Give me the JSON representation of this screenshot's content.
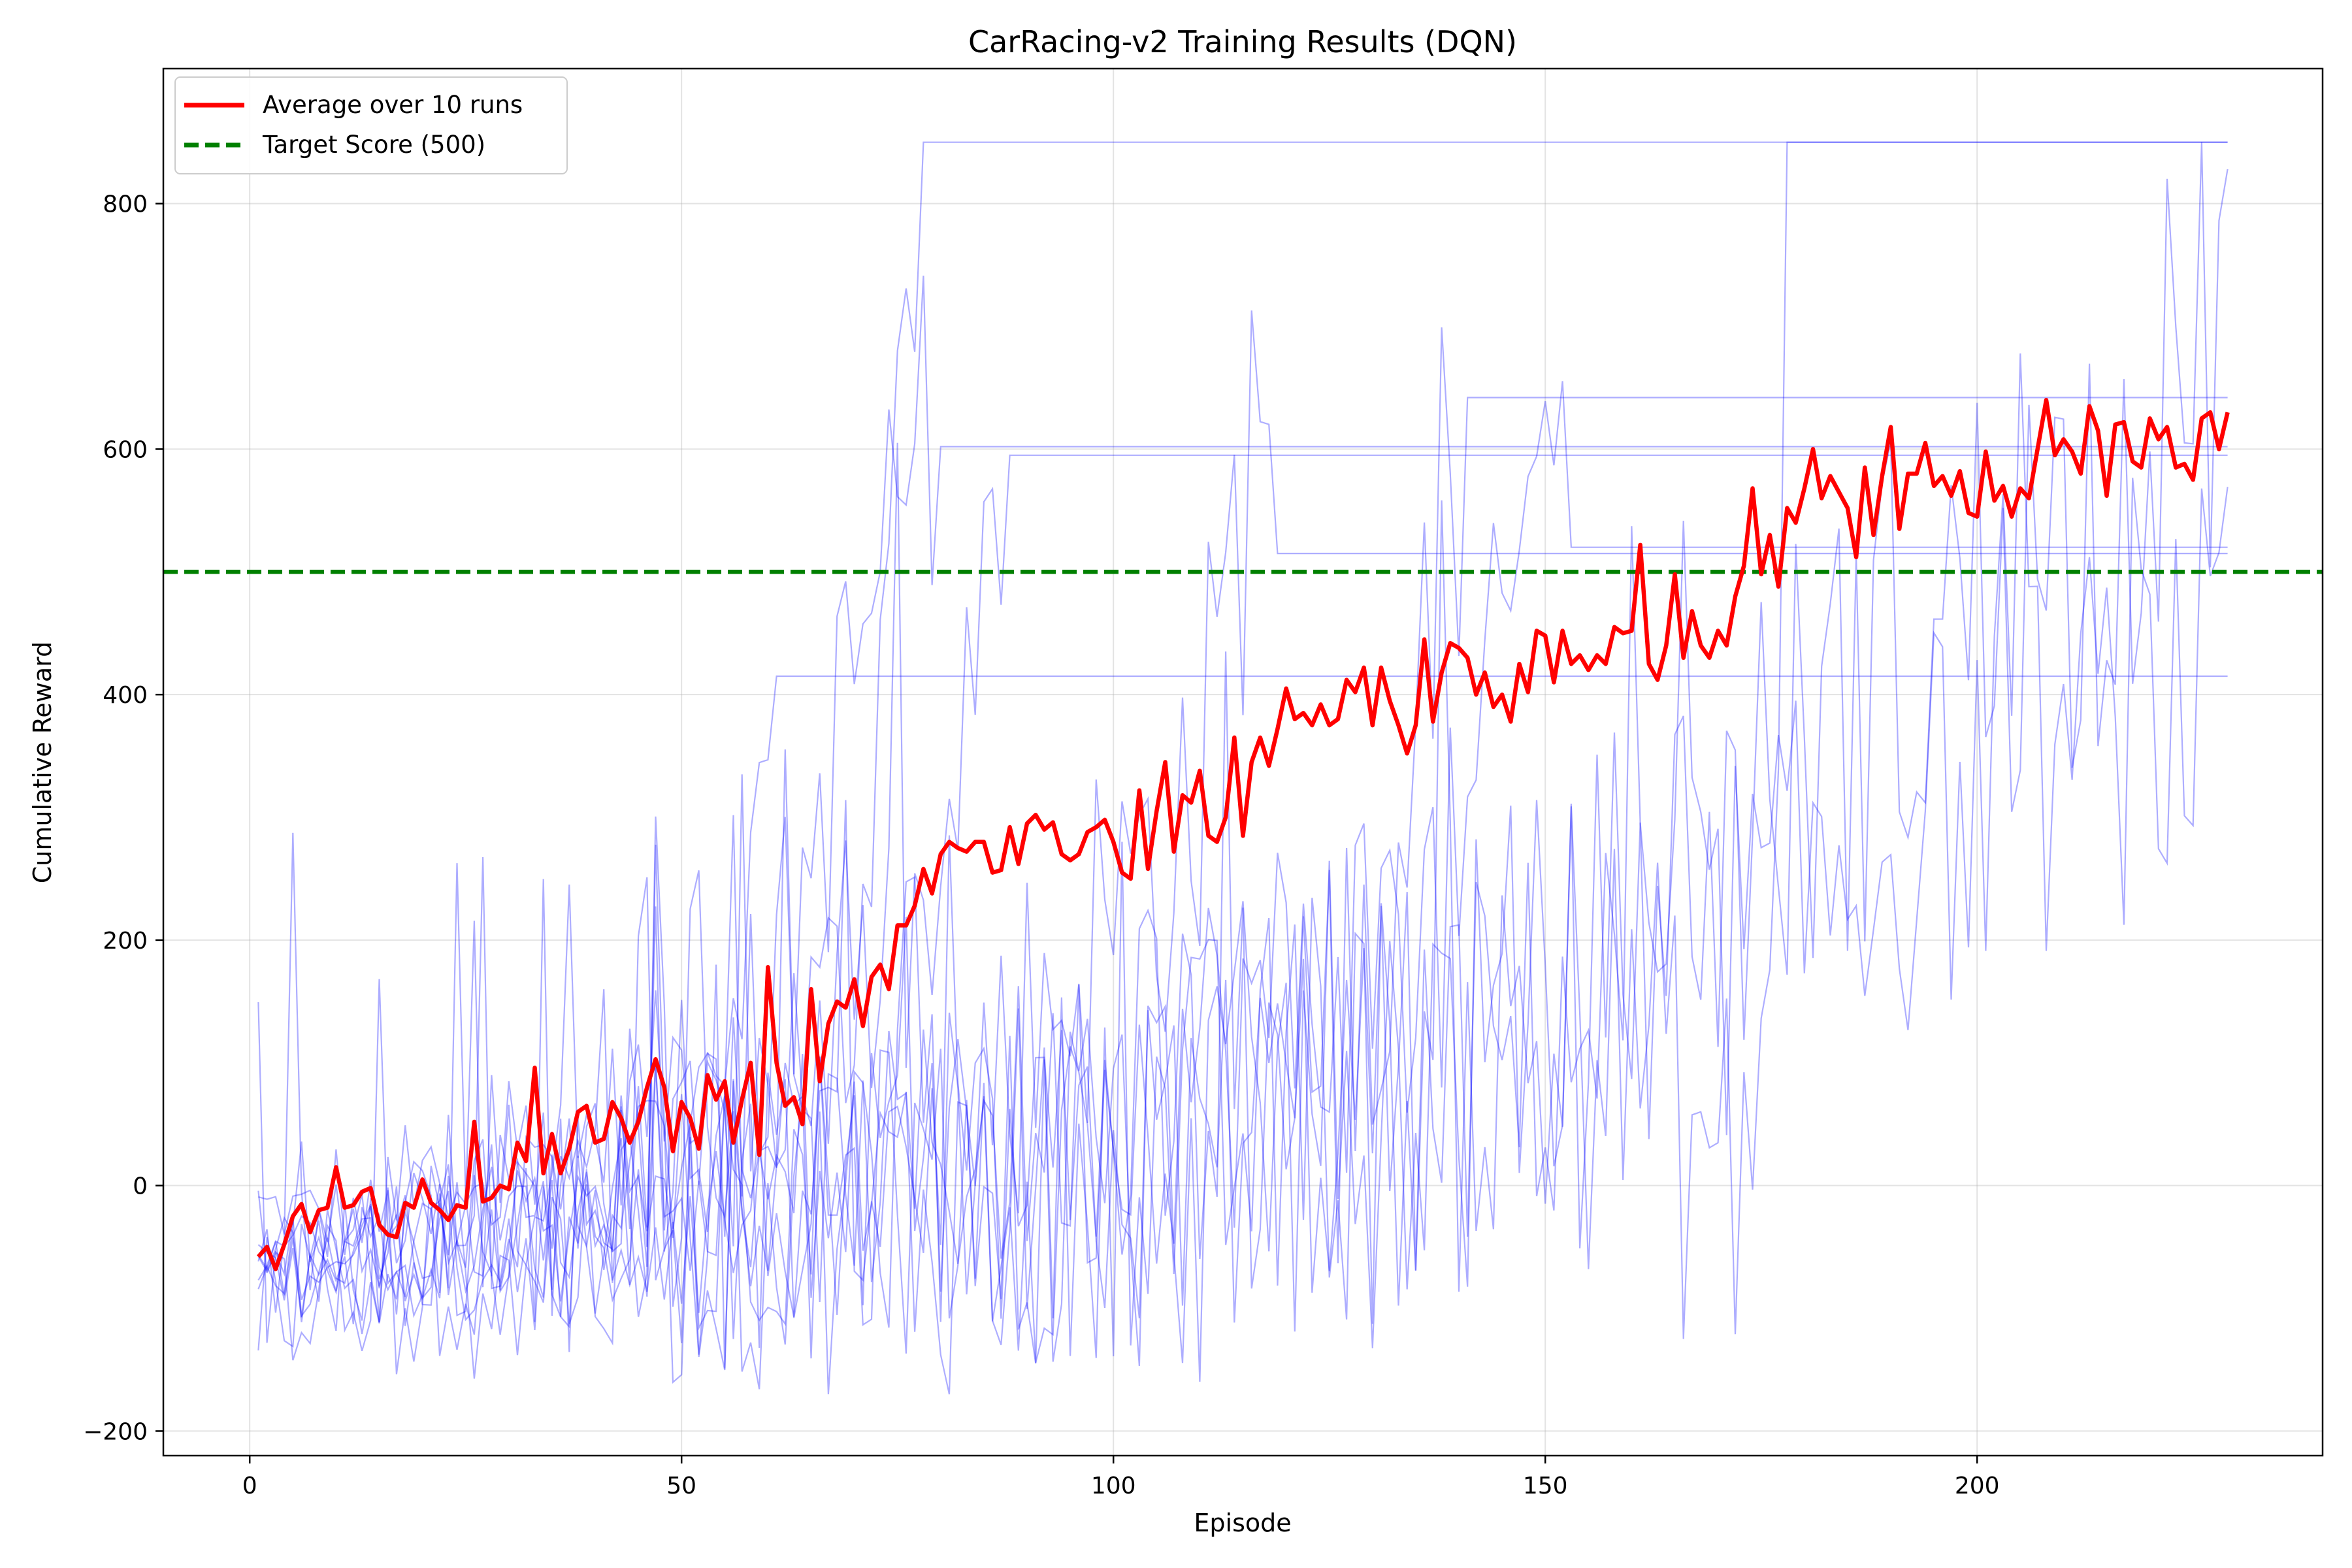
{
  "chart_data": {
    "type": "line",
    "title": "CarRacing-v2 Training Results (DQN)",
    "xlabel": "Episode",
    "ylabel": "Cumulative Reward",
    "xlim": [
      -10,
      240
    ],
    "ylim": [
      -220,
      910
    ],
    "x_ticks": [
      0,
      50,
      100,
      150,
      200
    ],
    "y_ticks": [
      -200,
      0,
      200,
      400,
      600,
      800
    ],
    "x_tick_labels": [
      "0",
      "50",
      "100",
      "150",
      "200"
    ],
    "y_tick_labels": [
      "−200",
      "0",
      "200",
      "400",
      "600",
      "800"
    ],
    "grid": true,
    "legend_position": "top-left",
    "colors": {
      "average": "#ff0000",
      "target": "#008000",
      "runs": "#0000ff"
    },
    "target_score": {
      "name": "Target Score (500)",
      "value": 500
    },
    "average": {
      "name": "Average over 10 runs",
      "keypoints": [
        [
          1,
          -58
        ],
        [
          2,
          -50
        ],
        [
          3,
          -68
        ],
        [
          4,
          -48
        ],
        [
          5,
          -25
        ],
        [
          6,
          -15
        ],
        [
          7,
          -38
        ],
        [
          8,
          -20
        ],
        [
          9,
          -18
        ],
        [
          10,
          15
        ],
        [
          11,
          -18
        ],
        [
          12,
          -16
        ],
        [
          13,
          -5
        ],
        [
          14,
          -2
        ],
        [
          15,
          -32
        ],
        [
          16,
          -40
        ],
        [
          17,
          -42
        ],
        [
          18,
          -14
        ],
        [
          19,
          -18
        ],
        [
          20,
          5
        ],
        [
          21,
          -14
        ],
        [
          22,
          -20
        ],
        [
          23,
          -28
        ],
        [
          24,
          -16
        ],
        [
          25,
          -18
        ],
        [
          26,
          52
        ],
        [
          27,
          -13
        ],
        [
          28,
          -10
        ],
        [
          29,
          0
        ],
        [
          30,
          -3
        ],
        [
          31,
          35
        ],
        [
          32,
          20
        ],
        [
          33,
          96
        ],
        [
          34,
          10
        ],
        [
          35,
          42
        ],
        [
          36,
          10
        ],
        [
          37,
          30
        ],
        [
          38,
          60
        ],
        [
          39,
          65
        ],
        [
          40,
          35
        ],
        [
          41,
          38
        ],
        [
          42,
          68
        ],
        [
          43,
          55
        ],
        [
          44,
          35
        ],
        [
          45,
          52
        ],
        [
          46,
          80
        ],
        [
          47,
          103
        ],
        [
          48,
          80
        ],
        [
          49,
          28
        ],
        [
          50,
          68
        ],
        [
          51,
          55
        ],
        [
          52,
          30
        ],
        [
          53,
          90
        ],
        [
          54,
          70
        ],
        [
          55,
          85
        ],
        [
          56,
          35
        ],
        [
          57,
          70
        ],
        [
          58,
          100
        ],
        [
          59,
          25
        ],
        [
          60,
          178
        ],
        [
          61,
          100
        ],
        [
          62,
          65
        ],
        [
          63,
          72
        ],
        [
          64,
          50
        ],
        [
          65,
          160
        ],
        [
          66,
          85
        ],
        [
          67,
          132
        ],
        [
          68,
          150
        ],
        [
          69,
          145
        ],
        [
          70,
          168
        ],
        [
          71,
          130
        ],
        [
          72,
          170
        ],
        [
          73,
          180
        ],
        [
          74,
          160
        ],
        [
          75,
          212
        ],
        [
          76,
          212
        ],
        [
          77,
          228
        ],
        [
          78,
          258
        ],
        [
          79,
          238
        ],
        [
          80,
          270
        ],
        [
          81,
          280
        ],
        [
          82,
          275
        ],
        [
          83,
          272
        ],
        [
          84,
          280
        ],
        [
          85,
          280
        ],
        [
          86,
          255
        ],
        [
          87,
          257
        ],
        [
          88,
          292
        ],
        [
          89,
          262
        ],
        [
          90,
          295
        ],
        [
          91,
          302
        ],
        [
          92,
          290
        ],
        [
          93,
          296
        ],
        [
          94,
          270
        ],
        [
          95,
          265
        ],
        [
          96,
          270
        ],
        [
          97,
          288
        ],
        [
          98,
          292
        ],
        [
          99,
          298
        ],
        [
          100,
          280
        ],
        [
          101,
          255
        ],
        [
          102,
          250
        ],
        [
          103,
          322
        ],
        [
          104,
          258
        ],
        [
          105,
          305
        ],
        [
          106,
          345
        ],
        [
          107,
          272
        ],
        [
          108,
          318
        ],
        [
          109,
          312
        ],
        [
          110,
          338
        ],
        [
          111,
          285
        ],
        [
          112,
          280
        ],
        [
          113,
          300
        ],
        [
          114,
          365
        ],
        [
          115,
          285
        ],
        [
          116,
          345
        ],
        [
          117,
          365
        ],
        [
          118,
          342
        ],
        [
          119,
          372
        ],
        [
          120,
          405
        ],
        [
          121,
          380
        ],
        [
          122,
          385
        ],
        [
          123,
          375
        ],
        [
          124,
          392
        ],
        [
          125,
          375
        ],
        [
          126,
          380
        ],
        [
          127,
          412
        ],
        [
          128,
          402
        ],
        [
          129,
          422
        ],
        [
          130,
          375
        ],
        [
          131,
          422
        ],
        [
          132,
          395
        ],
        [
          133,
          375
        ],
        [
          134,
          352
        ],
        [
          135,
          375
        ],
        [
          136,
          445
        ],
        [
          137,
          378
        ],
        [
          138,
          418
        ],
        [
          139,
          442
        ],
        [
          140,
          438
        ],
        [
          141,
          430
        ],
        [
          142,
          400
        ],
        [
          143,
          418
        ],
        [
          144,
          390
        ],
        [
          145,
          400
        ],
        [
          146,
          378
        ],
        [
          147,
          425
        ],
        [
          148,
          402
        ],
        [
          149,
          452
        ],
        [
          150,
          448
        ],
        [
          151,
          410
        ],
        [
          152,
          452
        ],
        [
          153,
          425
        ],
        [
          154,
          432
        ],
        [
          155,
          420
        ],
        [
          156,
          432
        ],
        [
          157,
          425
        ],
        [
          158,
          455
        ],
        [
          159,
          450
        ],
        [
          160,
          452
        ],
        [
          161,
          522
        ],
        [
          162,
          425
        ],
        [
          163,
          412
        ],
        [
          164,
          440
        ],
        [
          165,
          498
        ],
        [
          166,
          430
        ],
        [
          167,
          468
        ],
        [
          168,
          440
        ],
        [
          169,
          430
        ],
        [
          170,
          452
        ],
        [
          171,
          440
        ],
        [
          172,
          480
        ],
        [
          173,
          505
        ],
        [
          174,
          568
        ],
        [
          175,
          498
        ],
        [
          176,
          530
        ],
        [
          177,
          488
        ],
        [
          178,
          552
        ],
        [
          179,
          540
        ],
        [
          180,
          568
        ],
        [
          181,
          600
        ],
        [
          182,
          560
        ],
        [
          183,
          578
        ],
        [
          184,
          565
        ],
        [
          185,
          552
        ],
        [
          186,
          512
        ],
        [
          187,
          585
        ],
        [
          188,
          530
        ],
        [
          189,
          578
        ],
        [
          190,
          618
        ],
        [
          191,
          535
        ],
        [
          192,
          580
        ],
        [
          193,
          580
        ],
        [
          194,
          605
        ],
        [
          195,
          570
        ],
        [
          196,
          578
        ],
        [
          197,
          562
        ],
        [
          198,
          582
        ],
        [
          199,
          548
        ],
        [
          200,
          545
        ],
        [
          201,
          598
        ],
        [
          202,
          558
        ],
        [
          203,
          570
        ],
        [
          204,
          545
        ],
        [
          205,
          568
        ],
        [
          206,
          560
        ],
        [
          207,
          600
        ],
        [
          208,
          640
        ],
        [
          209,
          595
        ],
        [
          210,
          608
        ],
        [
          211,
          598
        ],
        [
          212,
          580
        ],
        [
          213,
          635
        ],
        [
          214,
          615
        ],
        [
          215,
          562
        ],
        [
          216,
          620
        ],
        [
          217,
          622
        ],
        [
          218,
          590
        ],
        [
          219,
          585
        ],
        [
          220,
          625
        ],
        [
          221,
          608
        ],
        [
          222,
          618
        ],
        [
          223,
          585
        ],
        [
          224,
          588
        ],
        [
          225,
          575
        ],
        [
          226,
          625
        ],
        [
          227,
          630
        ],
        [
          228,
          600
        ],
        [
          229,
          630
        ]
      ]
    },
    "runs": [
      {
        "keypoints": [
          [
            1,
            -20
          ],
          [
            10,
            -30
          ],
          [
            20,
            -40
          ],
          [
            30,
            -20
          ],
          [
            45,
            60
          ],
          [
            55,
            120
          ],
          [
            60,
            320
          ],
          [
            61,
            415
          ],
          [
            229,
            415
          ]
        ]
      },
      {
        "keypoints": [
          [
            1,
            -80
          ],
          [
            15,
            -60
          ],
          [
            30,
            -40
          ],
          [
            50,
            -20
          ],
          [
            70,
            150
          ],
          [
            78,
            858
          ],
          [
            229,
            858
          ]
        ]
      },
      {
        "keypoints": [
          [
            1,
            -60
          ],
          [
            20,
            -40
          ],
          [
            40,
            20
          ],
          [
            60,
            100
          ],
          [
            75,
            550
          ],
          [
            80,
            602
          ],
          [
            229,
            602
          ]
        ]
      },
      {
        "keypoints": [
          [
            1,
            -70
          ],
          [
            20,
            -50
          ],
          [
            40,
            -10
          ],
          [
            60,
            50
          ],
          [
            80,
            200
          ],
          [
            88,
            595
          ],
          [
            229,
            595
          ]
        ]
      },
      {
        "keypoints": [
          [
            1,
            -75
          ],
          [
            20,
            -60
          ],
          [
            50,
            -30
          ],
          [
            80,
            20
          ],
          [
            110,
            300
          ],
          [
            118,
            680
          ],
          [
            119,
            515
          ],
          [
            229,
            515
          ]
        ]
      },
      {
        "keypoints": [
          [
            1,
            -85
          ],
          [
            30,
            -60
          ],
          [
            60,
            -30
          ],
          [
            100,
            20
          ],
          [
            130,
            100
          ],
          [
            141,
            642
          ],
          [
            229,
            642
          ]
        ]
      },
      {
        "keypoints": [
          [
            1,
            -65
          ],
          [
            30,
            -40
          ],
          [
            60,
            -20
          ],
          [
            100,
            50
          ],
          [
            140,
            200
          ],
          [
            152,
            680
          ],
          [
            153,
            520
          ],
          [
            229,
            520
          ]
        ]
      },
      {
        "keypoints": [
          [
            1,
            -80
          ],
          [
            30,
            -50
          ],
          [
            80,
            -20
          ],
          [
            120,
            30
          ],
          [
            160,
            100
          ],
          [
            172,
            -30
          ],
          [
            177,
            200
          ],
          [
            178,
            862
          ],
          [
            229,
            862
          ]
        ]
      },
      {
        "keypoints": [
          [
            1,
            -90
          ],
          [
            50,
            -60
          ],
          [
            100,
            -20
          ],
          [
            150,
            100
          ],
          [
            190,
            400
          ],
          [
            210,
            500
          ],
          [
            229,
            680
          ]
        ]
      },
      {
        "keypoints": [
          [
            1,
            -60
          ],
          [
            50,
            -40
          ],
          [
            100,
            -10
          ],
          [
            150,
            100
          ],
          [
            200,
            300
          ],
          [
            229,
            400
          ]
        ]
      }
    ]
  }
}
